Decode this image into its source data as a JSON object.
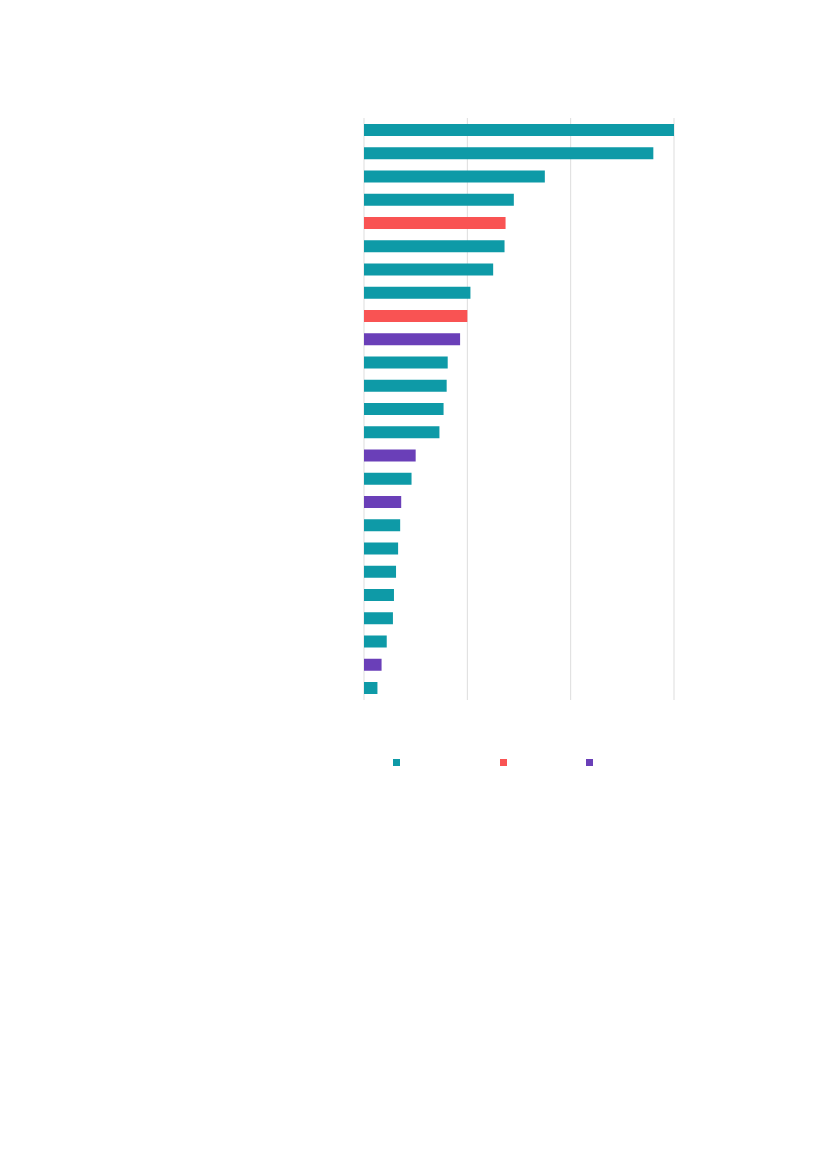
{
  "chart_data": {
    "type": "bar",
    "orientation": "horizontal",
    "title": "",
    "xlabel": "",
    "ylabel": "",
    "categories": [
      "",
      "",
      "",
      "",
      "",
      "",
      "",
      "",
      "",
      "",
      "",
      "",
      "",
      "",
      "",
      "",
      "",
      "",
      "",
      "",
      "",
      "",
      "",
      "",
      ""
    ],
    "values": [
      300,
      280,
      175,
      145,
      137,
      136,
      125,
      103,
      100,
      93,
      81,
      80,
      77,
      73,
      50,
      46,
      36,
      35,
      33,
      31,
      29,
      28,
      22,
      17,
      13
    ],
    "groups": [
      0,
      0,
      0,
      0,
      1,
      0,
      0,
      0,
      1,
      2,
      0,
      0,
      0,
      0,
      2,
      0,
      2,
      0,
      0,
      0,
      0,
      0,
      0,
      2,
      0
    ],
    "xlim": [
      0,
      300
    ],
    "x_gridlines": [
      0,
      100,
      200,
      300
    ],
    "grid": true,
    "legend": {
      "placement": "bottom",
      "entries": [
        {
          "label": "",
          "color": "#0e9aa7"
        },
        {
          "label": "",
          "color": "#f95353"
        },
        {
          "label": "",
          "color": "#6a3fb8"
        }
      ]
    }
  }
}
